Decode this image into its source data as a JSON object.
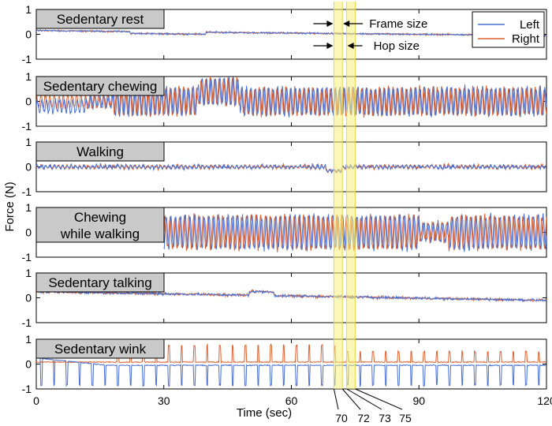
{
  "chart_data": {
    "type": "line",
    "xlabel": "Time (sec)",
    "ylabel": "Force (N)",
    "xlim": [
      0,
      120
    ],
    "ylim": [
      -1,
      1
    ],
    "x_ticks": [
      "0",
      "30",
      "60",
      "90",
      "120"
    ],
    "y_ticks": [
      "1",
      "0",
      "-1"
    ],
    "highlight_ticks": [
      "70",
      "72",
      "73",
      "75"
    ],
    "highlight_windows": [
      {
        "start": 70,
        "end": 72
      },
      {
        "start": 73,
        "end": 75
      }
    ],
    "annotations": {
      "frame": "Frame size",
      "hop": "Hop size"
    },
    "legend": {
      "position": "top-right",
      "entries": [
        {
          "name": "Left",
          "color": "#4a6fd4"
        },
        {
          "name": "Right",
          "color": "#e0612f"
        }
      ]
    },
    "panels": [
      {
        "title": [
          "Sedentary rest"
        ],
        "pattern": "rest",
        "description_values": {
          "amplitude": 0.05,
          "offset_start": 0.15,
          "offset_end": -0.05
        }
      },
      {
        "title": [
          "Sedentary chewing"
        ],
        "pattern": "chewing",
        "description_values": {
          "amplitude": 0.55,
          "offset": 0.0
        }
      },
      {
        "title": [
          "Walking"
        ],
        "pattern": "walking",
        "description_values": {
          "amplitude": 0.1,
          "offset": 0.0
        }
      },
      {
        "title": [
          "Chewing",
          "while walking"
        ],
        "pattern": "chew_walk",
        "start": 30,
        "description_values": {
          "amplitude": 0.65,
          "offset": 0.0
        }
      },
      {
        "title": [
          "Sedentary talking"
        ],
        "pattern": "talking",
        "description_values": {
          "amplitude": 0.08,
          "offset_start": 0.25,
          "offset_end": -0.1
        }
      },
      {
        "title": [
          "Sedentary wink"
        ],
        "pattern": "wink",
        "description_values": {
          "spike_left": -0.85,
          "spike_right": 0.75,
          "period_sec": 3
        }
      }
    ]
  }
}
